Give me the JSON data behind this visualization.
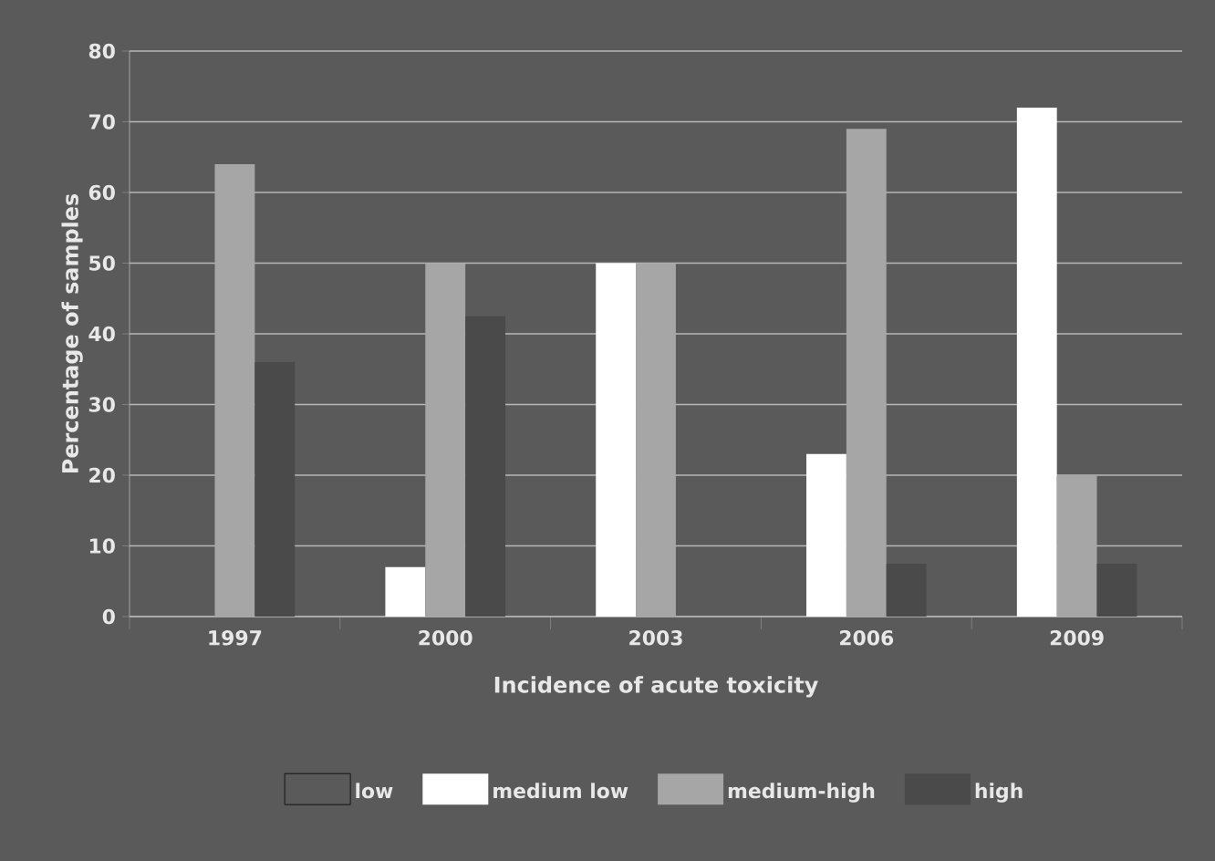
{
  "chart_data": {
    "type": "bar",
    "xlabel": "Incidence of acute toxicity",
    "ylabel": "Percentage of samples",
    "categories": [
      "1997",
      "2000",
      "2003",
      "2006",
      "2009"
    ],
    "series": [
      {
        "name": "low",
        "values": [
          0,
          0,
          0,
          0,
          0
        ]
      },
      {
        "name": "medium low",
        "color": "#ffffff",
        "values": [
          0,
          7,
          50,
          23,
          72
        ]
      },
      {
        "name": "medium-high",
        "color": "#a6a6a6",
        "values": [
          64,
          50,
          50,
          69,
          20
        ]
      },
      {
        "name": "high",
        "color": "#4a4a4a",
        "values": [
          36,
          42.5,
          0,
          7.5,
          7.5
        ]
      }
    ],
    "ylim": [
      0,
      80
    ],
    "yticks": [
      0,
      10,
      20,
      30,
      40,
      50,
      60,
      70,
      80
    ],
    "grid": "y",
    "legend": "bottom"
  }
}
